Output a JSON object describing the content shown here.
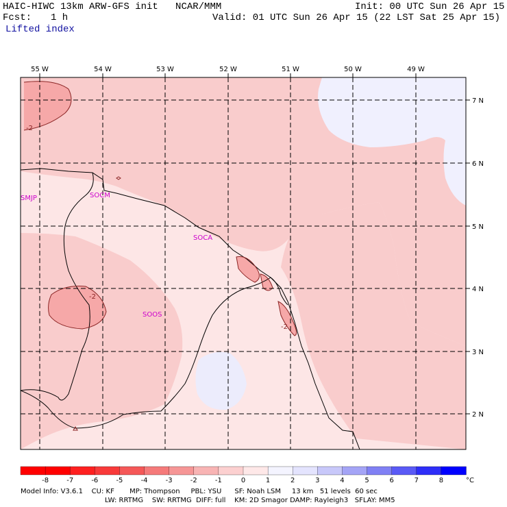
{
  "header": {
    "title": "HAIC-HIWC 13km ARW-GFS init   NCAR/MMM",
    "init": "Init: 00 UTC Sun 26 Apr 15",
    "fcst_label": "Fcst:",
    "fcst_value": "1 h",
    "valid": "Valid: 01 UTC Sun 26 Apr 15 (22 LST Sat 25 Apr 15)",
    "field": "Lifted index"
  },
  "map": {
    "lon_labels": [
      "55 W",
      "54 W",
      "53 W",
      "52 W",
      "51 W",
      "50 W",
      "49 W"
    ],
    "lat_labels": [
      "7 N",
      "6 N",
      "5 N",
      "4 N",
      "3 N",
      "2 N"
    ],
    "stations": [
      "SMJP",
      "SOCM",
      "SOCA",
      "SOOS"
    ],
    "contour_labels": [
      "-2",
      "-2",
      "-2"
    ]
  },
  "colorbar": {
    "ticks": [
      "-8",
      "-7",
      "-6",
      "-5",
      "-4",
      "-3",
      "-2",
      "-1",
      "0",
      "1",
      "2",
      "3",
      "4",
      "5",
      "6",
      "7",
      "8"
    ],
    "unit": "°C",
    "colors": [
      "#ff0000",
      "#fe2020",
      "#f83a3a",
      "#f55858",
      "#f57a7a",
      "#f69696",
      "#f8b4b4",
      "#fcd0d0",
      "#fee8e8",
      "#f4f4ff",
      "#e4e4fe",
      "#c8c8fa",
      "#a4a4f6",
      "#8080f4",
      "#5a5af6",
      "#2e2ef8",
      "#0000ff"
    ]
  },
  "footer": {
    "line1": "Model Info: V3.6.1    CU: KF       MP: Thompson     PBL: YSU      SF: Noah LSM     13 km   51 levels  60 sec",
    "line2": "LW: RRTMG    SW: RRTMG  DIFF: full    KM: 2D Smagor DAMP: Rayleigh3   SFLAY: MM5"
  }
}
